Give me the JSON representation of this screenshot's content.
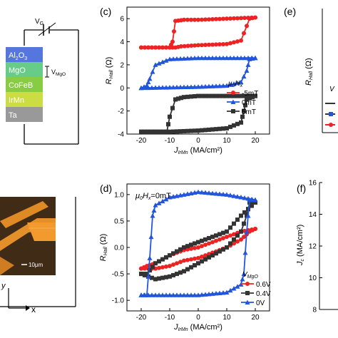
{
  "device": {
    "gate_label": "V",
    "gate_sub": "G",
    "mgo_voltage_label": "V",
    "mgo_voltage_sub": "MgO",
    "layers": [
      {
        "label": "Al2O3",
        "color": "#5577dd"
      },
      {
        "label": "MgO",
        "color": "#66cc88"
      },
      {
        "label": "CoFeB",
        "color": "#88cc44"
      },
      {
        "label": "IrMn",
        "color": "#ccdd44"
      },
      {
        "label": "Ta",
        "color": "#999999"
      }
    ]
  },
  "micrograph": {
    "scale_label": "10μm",
    "axis_x_label": "x",
    "axis_y_label": "y"
  },
  "panel_labels": {
    "c": "(c)",
    "d": "(d)",
    "e": "(e)",
    "f": "(f)"
  },
  "chart_data": [
    {
      "id": "c",
      "type": "line",
      "xlabel": "J_IrMn (MA/cm²)",
      "ylabel": "R_Hall (Ω)",
      "xlim": [
        -25,
        25
      ],
      "ylim": [
        -4,
        7
      ],
      "xticks": [
        -20,
        -10,
        0,
        10,
        20
      ],
      "yticks": [
        -4,
        -2,
        0,
        2,
        4,
        6
      ],
      "legend_title": "μ0Hx",
      "legend_position": "right",
      "series": [
        {
          "name": "-5mT",
          "color": "#ee2222",
          "marker": "circle",
          "x_up": [
            -20,
            -10,
            -8,
            -6,
            0,
            10,
            15,
            18,
            20
          ],
          "up": [
            3.5,
            3.5,
            3.5,
            3.6,
            3.7,
            3.8,
            4.1,
            6.0,
            6.1
          ],
          "x_down": [
            20,
            10,
            0,
            -5,
            -8,
            -9,
            -10,
            -20
          ],
          "down": [
            6.1,
            6.0,
            5.9,
            5.9,
            5.8,
            4.0,
            3.5,
            3.5
          ]
        },
        {
          "name": "0mT",
          "color": "#2255dd",
          "marker": "triangle",
          "x_up": [
            -20,
            -10,
            0,
            10,
            15,
            17,
            18,
            20
          ],
          "up": [
            0.0,
            0.05,
            0.1,
            0.2,
            0.5,
            1.5,
            2.5,
            2.6
          ],
          "x_down": [
            20,
            10,
            0,
            -10,
            -15,
            -17,
            -18,
            -20
          ],
          "down": [
            2.6,
            2.6,
            2.6,
            2.5,
            2.0,
            0.8,
            0.2,
            0.0
          ]
        },
        {
          "name": "5mT",
          "color": "#333333",
          "marker": "square",
          "x_up": [
            -20,
            -10,
            0,
            10,
            15,
            16,
            17,
            20
          ],
          "up": [
            -3.8,
            -3.8,
            -3.7,
            -3.5,
            -3.0,
            -2.0,
            -1.0,
            -0.7
          ],
          "x_down": [
            20,
            10,
            0,
            -5,
            -8,
            -10,
            -11,
            -20
          ],
          "down": [
            -0.7,
            -0.7,
            -0.7,
            -0.8,
            -1.0,
            -2.5,
            -3.8,
            -3.8
          ]
        }
      ]
    },
    {
      "id": "d",
      "type": "line",
      "xlabel": "J_IrMn (MA/cm²)",
      "ylabel": "R_Hall (Ω)",
      "xlim": [
        -25,
        25
      ],
      "ylim": [
        -1.2,
        1.2
      ],
      "xticks": [
        -20,
        -10,
        0,
        10,
        20
      ],
      "yticks": [
        -1.0,
        -0.5,
        0.0,
        0.5,
        1.0
      ],
      "annotation": "μ0Hx=0mT",
      "legend_title": "VMgO",
      "legend_position": "bottom-right",
      "series": [
        {
          "name": "0.6V",
          "color": "#ee2222",
          "marker": "circle",
          "x_up": [
            -20,
            -15,
            -10,
            -5,
            0,
            5,
            10,
            15,
            18,
            20
          ],
          "up": [
            -0.4,
            -0.4,
            -0.35,
            -0.25,
            -0.2,
            -0.1,
            0.0,
            0.15,
            0.3,
            0.35
          ],
          "x_down": [
            20,
            15,
            10,
            5,
            0,
            -5,
            -10,
            -15,
            -18,
            -20
          ],
          "down": [
            0.35,
            0.3,
            0.2,
            0.1,
            0.0,
            -0.05,
            -0.15,
            -0.3,
            -0.35,
            -0.4
          ]
        },
        {
          "name": "0.4V",
          "color": "#333333",
          "marker": "square",
          "x_up": [
            -20,
            -15,
            -10,
            -5,
            0,
            5,
            10,
            15,
            17,
            18,
            20
          ],
          "up": [
            -0.5,
            -0.6,
            -0.55,
            -0.45,
            -0.3,
            -0.15,
            0.0,
            0.3,
            0.6,
            0.85,
            0.85
          ],
          "x_down": [
            20,
            15,
            10,
            5,
            0,
            -5,
            -10,
            -15,
            -18,
            -20
          ],
          "down": [
            0.85,
            0.6,
            0.3,
            0.2,
            0.1,
            0.0,
            -0.15,
            -0.3,
            -0.5,
            -0.5
          ]
        },
        {
          "name": "0V",
          "color": "#2255dd",
          "marker": "triangle",
          "x_up": [
            -20,
            -10,
            0,
            10,
            15,
            16,
            17,
            18,
            20
          ],
          "up": [
            -0.9,
            -0.9,
            -0.9,
            -0.85,
            -0.7,
            -0.5,
            0.3,
            0.9,
            0.9
          ],
          "x_down": [
            20,
            10,
            0,
            -10,
            -15,
            -16,
            -17,
            -18,
            -20
          ],
          "down": [
            0.9,
            1.0,
            1.05,
            0.95,
            0.8,
            0.6,
            -0.2,
            -0.9,
            -0.9
          ]
        }
      ]
    },
    {
      "id": "e",
      "type": "line",
      "ylabel": "R_Hall (Ω)",
      "legend_title_partial": "V"
    },
    {
      "id": "f",
      "type": "line",
      "ylabel": "J_c (MA/cm²)",
      "ylim": [
        8,
        16
      ],
      "yticks": [
        8,
        10,
        12,
        14,
        16
      ]
    }
  ]
}
